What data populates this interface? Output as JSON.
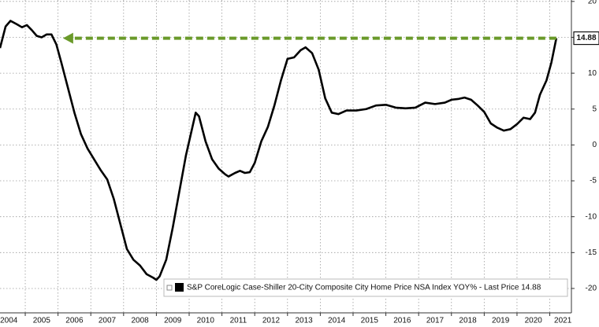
{
  "chart_data": {
    "type": "line",
    "series": [
      {
        "name": "S&P CoreLogic Case-Shiller 20-City Composite City Home Price NSA Index YOY% - Last Price 14.88",
        "color": "#000000",
        "x": [
          2004.23,
          2004.4,
          2004.55,
          2004.75,
          2004.9,
          2005.05,
          2005.2,
          2005.35,
          2005.5,
          2005.65,
          2005.8,
          2005.95,
          2006.1,
          2006.3,
          2006.5,
          2006.7,
          2006.9,
          2007.1,
          2007.3,
          2007.5,
          2007.7,
          2007.9,
          2008.1,
          2008.3,
          2008.5,
          2008.7,
          2008.9,
          2009.0,
          2009.1,
          2009.3,
          2009.5,
          2009.7,
          2009.9,
          2010.1,
          2010.2,
          2010.3,
          2010.5,
          2010.7,
          2010.9,
          2011.1,
          2011.2,
          2011.4,
          2011.55,
          2011.7,
          2011.85,
          2012.0,
          2012.2,
          2012.4,
          2012.6,
          2012.8,
          2013.0,
          2013.2,
          2013.4,
          2013.55,
          2013.75,
          2013.95,
          2014.15,
          2014.35,
          2014.55,
          2014.8,
          2015.1,
          2015.4,
          2015.7,
          2016.0,
          2016.3,
          2016.6,
          2016.9,
          2017.2,
          2017.5,
          2017.8,
          2018.0,
          2018.2,
          2018.4,
          2018.6,
          2018.8,
          2019.0,
          2019.2,
          2019.4,
          2019.6,
          2019.8,
          2020.0,
          2020.2,
          2020.4,
          2020.55,
          2020.7,
          2020.9,
          2021.05,
          2021.2
        ],
        "values": [
          13.5,
          16.5,
          17.3,
          16.8,
          16.4,
          16.7,
          16.0,
          15.2,
          15.0,
          15.4,
          15.4,
          14.0,
          11.5,
          8.0,
          4.5,
          1.5,
          -0.5,
          -2.0,
          -3.5,
          -4.8,
          -7.5,
          -11.0,
          -14.5,
          -16.0,
          -16.8,
          -18.0,
          -18.5,
          -18.8,
          -18.3,
          -16.0,
          -11.5,
          -6.5,
          -1.5,
          2.5,
          4.5,
          4.0,
          0.5,
          -2.0,
          -3.3,
          -4.1,
          -4.4,
          -3.9,
          -3.6,
          -3.9,
          -3.8,
          -2.5,
          0.5,
          2.5,
          5.5,
          9.0,
          12.0,
          12.2,
          13.2,
          13.6,
          12.8,
          10.5,
          6.5,
          4.5,
          4.3,
          4.8,
          4.8,
          5.0,
          5.5,
          5.6,
          5.2,
          5.1,
          5.2,
          5.9,
          5.7,
          5.9,
          6.3,
          6.4,
          6.6,
          6.3,
          5.5,
          4.6,
          3.0,
          2.4,
          2.0,
          2.2,
          2.9,
          3.8,
          3.6,
          4.5,
          7.0,
          9.0,
          11.5,
          14.88
        ]
      }
    ],
    "arrow": {
      "x": [
        2021.2,
        2006.15
      ],
      "y": 14.88,
      "color": "#6a9a2a"
    },
    "xlim": [
      2004.23,
      2021.66
    ],
    "xticks": [
      {
        "value": 2004.5,
        "label": "2004"
      },
      {
        "value": 2005.5,
        "label": "2005"
      },
      {
        "value": 2006.5,
        "label": "2006"
      },
      {
        "value": 2007.5,
        "label": "2007"
      },
      {
        "value": 2008.5,
        "label": "2008"
      },
      {
        "value": 2009.5,
        "label": "2009"
      },
      {
        "value": 2010.5,
        "label": "2010"
      },
      {
        "value": 2011.5,
        "label": "2011"
      },
      {
        "value": 2012.5,
        "label": "2012"
      },
      {
        "value": 2013.5,
        "label": "2013"
      },
      {
        "value": 2014.5,
        "label": "2014"
      },
      {
        "value": 2015.5,
        "label": "2015"
      },
      {
        "value": 2016.5,
        "label": "2016"
      },
      {
        "value": 2017.5,
        "label": "2017"
      },
      {
        "value": 2018.5,
        "label": "2018"
      },
      {
        "value": 2019.5,
        "label": "2019"
      },
      {
        "value": 2020.5,
        "label": "2020"
      },
      {
        "value": 2021.4,
        "label": "2021"
      }
    ],
    "xgrid": [
      2005,
      2006,
      2007,
      2008,
      2009,
      2010,
      2011,
      2012,
      2013,
      2014,
      2015,
      2016,
      2017,
      2018,
      2019,
      2020,
      2021
    ],
    "ylim": [
      -23.4,
      20.2
    ],
    "yticks": [
      20,
      15,
      10,
      5,
      0,
      -5,
      -10,
      -15,
      -20
    ],
    "grid": true
  }
}
